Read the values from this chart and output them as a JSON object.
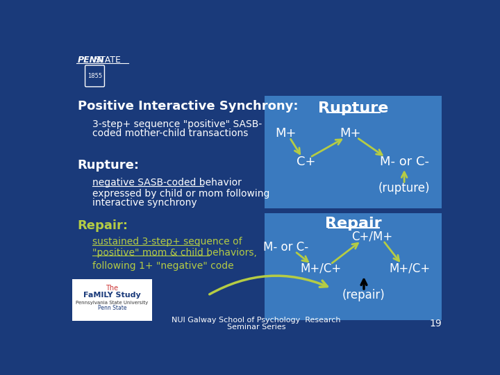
{
  "bg_color": "#1a3a7a",
  "panel_color": "#3a7abf",
  "title": "Positive Interactive Synchrony:",
  "subtitle": "3-step+ sequence \"positive\" SASB-coded mother-child transactions",
  "rupture_label": "Rupture:",
  "rupture_sub1": "negative SASB-coded behavior",
  "rupture_sub2": "expressed by child or mom following",
  "rupture_sub3": "interactive synchrony",
  "repair_label": "Repair:",
  "repair_color": "#b5cc44",
  "repair_sub1": "sustained 3-step+ sequence of",
  "repair_sub2": "\"positive\" mom & child behaviors,",
  "repair_sub3": "following 1+ \"negative\" code",
  "arrow_color": "#b5cc44",
  "panel1_title": "Rupture",
  "panel2_title": "Repair",
  "white": "#ffffff",
  "black": "#000000",
  "footer_line1": "NUI Galway School of Psychology  Research",
  "footer_line2": "Seminar Series",
  "page_num": "19"
}
